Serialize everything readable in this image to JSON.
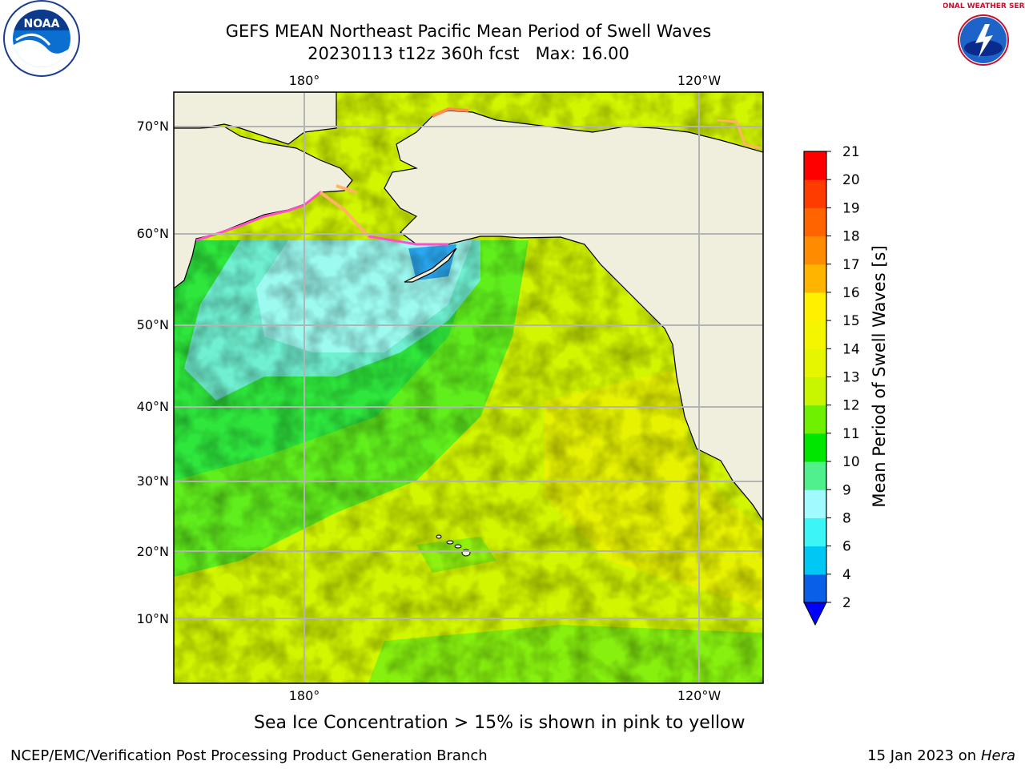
{
  "header": {
    "title_line1": "GEFS MEAN Northeast Pacific Mean Period of Swell Waves",
    "title_line2": "20230113 t12z 360h fcst   Max: 16.00"
  },
  "map": {
    "lon_labels_top": [
      "180°",
      "120°W"
    ],
    "lon_labels_bottom": [
      "180°",
      "120°W"
    ],
    "lat_labels": [
      "70°N",
      "60°N",
      "50°N",
      "40°N",
      "30°N",
      "20°N",
      "10°N"
    ]
  },
  "colorbar": {
    "label": "Mean Period of Swell Waves [s]",
    "ticks": [
      "2",
      "4",
      "6",
      "8",
      "9",
      "10",
      "11",
      "12",
      "13",
      "14",
      "15",
      "16",
      "17",
      "18",
      "19",
      "20",
      "21"
    ],
    "colors": [
      "#0a5fe8",
      "#00c8f5",
      "#3cf5f5",
      "#a0faff",
      "#50f08c",
      "#00e600",
      "#6ef000",
      "#c8f500",
      "#e6f500",
      "#f5f500",
      "#fff000",
      "#ffb400",
      "#ff8c00",
      "#ff6400",
      "#ff3c00",
      "#ff0000"
    ],
    "extend_color": "#0000ff"
  },
  "note": "Sea Ice Concentration > 15% is shown in pink to yellow",
  "footer": {
    "left": "NCEP/EMC/Verification Post Processing Product Generation Branch",
    "right_prefix": "15 Jan 2023 on ",
    "right_host": "Hera"
  },
  "logos": {
    "noaa_text": "NOAA",
    "nws_text": "NATIONAL WEATHER SERVICE"
  }
}
